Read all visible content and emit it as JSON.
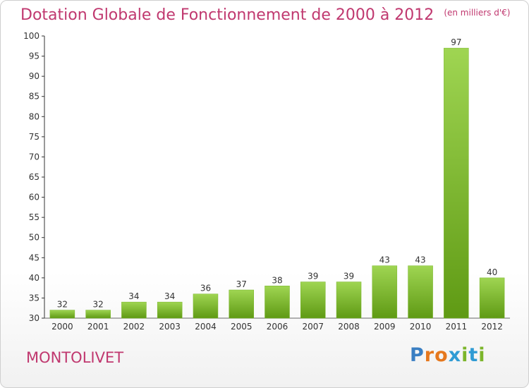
{
  "header": {
    "title": "Dotation Globale de Fonctionnement de 2000 à 2012",
    "unit": "(en milliers d'€)"
  },
  "footer": {
    "commune": "MONTOLIVET",
    "logo": "Proxiti"
  },
  "colors": {
    "accent": "#c0386f",
    "bar_top": "#9fd552",
    "bar_bottom": "#5f9a14"
  },
  "chart_data": {
    "type": "bar",
    "title": "Dotation Globale de Fonctionnement de 2000 à 2012",
    "subtitle": "(en milliers d'€)",
    "xlabel": "",
    "ylabel": "",
    "categories": [
      "2000",
      "2001",
      "2002",
      "2003",
      "2004",
      "2005",
      "2006",
      "2007",
      "2008",
      "2009",
      "2010",
      "2011",
      "2012"
    ],
    "values": [
      32,
      32,
      34,
      34,
      36,
      37,
      38,
      39,
      39,
      43,
      43,
      97,
      40
    ],
    "ylim": [
      30,
      100
    ],
    "yticks": [
      30,
      35,
      40,
      45,
      50,
      55,
      60,
      65,
      70,
      75,
      80,
      85,
      90,
      95,
      100
    ],
    "grid": false,
    "legend": "none"
  }
}
